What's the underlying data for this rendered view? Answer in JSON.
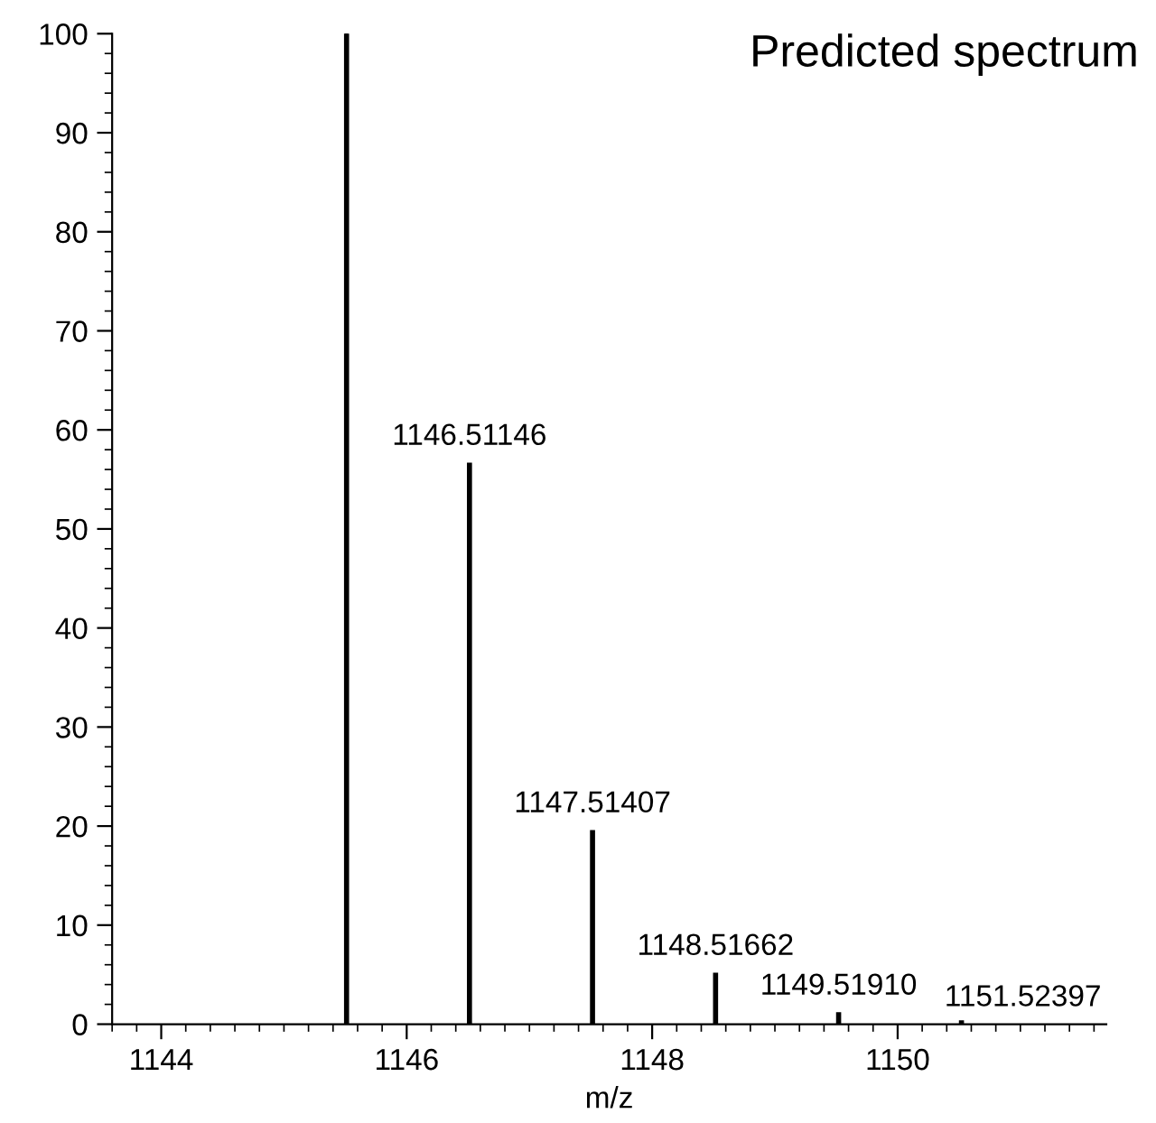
{
  "chart_data": {
    "type": "bar",
    "title": "Predicted spectrum",
    "xlabel": "m/z",
    "x": [
      1145.51,
      1146.51146,
      1147.51407,
      1148.51662,
      1149.5191,
      1150.52
    ],
    "values": [
      100,
      56.6,
      19.5,
      5.1,
      1.1,
      0.3
    ],
    "color": "#000000",
    "xlim": [
      1143.6,
      1151.7
    ],
    "xticks": [
      1144,
      1146,
      1148,
      1150
    ],
    "ylim": [
      0,
      100
    ],
    "yticks": [
      0,
      10,
      20,
      30,
      40,
      50,
      60,
      70,
      80,
      90,
      100
    ],
    "annotations": [
      {
        "text": "1146.51146",
        "x": 1146.51146,
        "y": 56.6
      },
      {
        "text": "1147.51407",
        "x": 1147.51407,
        "y": 19.5
      },
      {
        "text": "1148.51662",
        "x": 1148.51662,
        "y": 5.1
      },
      {
        "text": "1149.51910",
        "x": 1149.5191,
        "y": 1.1
      },
      "1151.52397"
    ],
    "grid": false,
    "legend": false
  }
}
